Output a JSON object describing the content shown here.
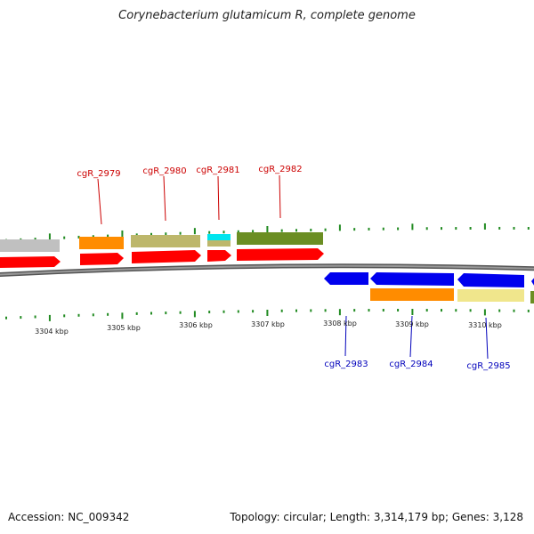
{
  "title": "Corynebacterium glutamicum R, complete genome",
  "footer": {
    "accession": "Accession: NC_009342",
    "summary": "Topology: circular; Length: 3,314,179 bp; Genes: 3,128"
  },
  "colors": {
    "backbone": "#888888",
    "tick": "#228b22",
    "forward_label": "#cc0000",
    "reverse_label": "#0000bb",
    "red_strand": "#ff0000",
    "blue_strand": "#0000ff",
    "orange": "#ff8c00",
    "khaki": "#bdb76b",
    "olive": "#6b8e23",
    "cyan": "#00ffff",
    "lightkhaki": "#f0e68c",
    "gray": "#c0c0c0"
  },
  "axis": {
    "unit": "kbp",
    "major_ticks": [
      "3304 kbp",
      "3305 kbp",
      "3306 kbp",
      "3307 kbp",
      "3308 kbp",
      "3309 kbp",
      "3310 kbp"
    ]
  },
  "genes_forward_labels": [
    "cgR_2979",
    "cgR_2980",
    "cgR_2981",
    "cgR_2982"
  ],
  "genes_reverse_labels": [
    "cgR_2983",
    "cgR_2984",
    "cgR_2985"
  ],
  "features": {
    "forward_cds": [
      {
        "color": "red_strand"
      },
      {
        "color": "red_strand",
        "label": "cgR_2979"
      },
      {
        "color": "red_strand",
        "label": "cgR_2980"
      },
      {
        "color": "red_strand",
        "label": "cgR_2981"
      },
      {
        "color": "red_strand",
        "label": "cgR_2982"
      }
    ],
    "forward_cog": [
      {
        "color": "gray"
      },
      {
        "color": "orange"
      },
      {
        "color": "khaki"
      },
      {
        "color": "cyan"
      },
      {
        "color": "khaki"
      },
      {
        "color": "olive"
      }
    ],
    "reverse_cds": [
      {
        "color": "blue_strand",
        "label": "cgR_2983"
      },
      {
        "color": "blue_strand",
        "label": "cgR_2984"
      },
      {
        "color": "blue_strand",
        "label": "cgR_2985"
      },
      {
        "color": "blue_strand"
      }
    ],
    "reverse_cog": [
      {
        "color": "orange"
      },
      {
        "color": "lightkhaki"
      },
      {
        "color": "olive"
      }
    ]
  }
}
